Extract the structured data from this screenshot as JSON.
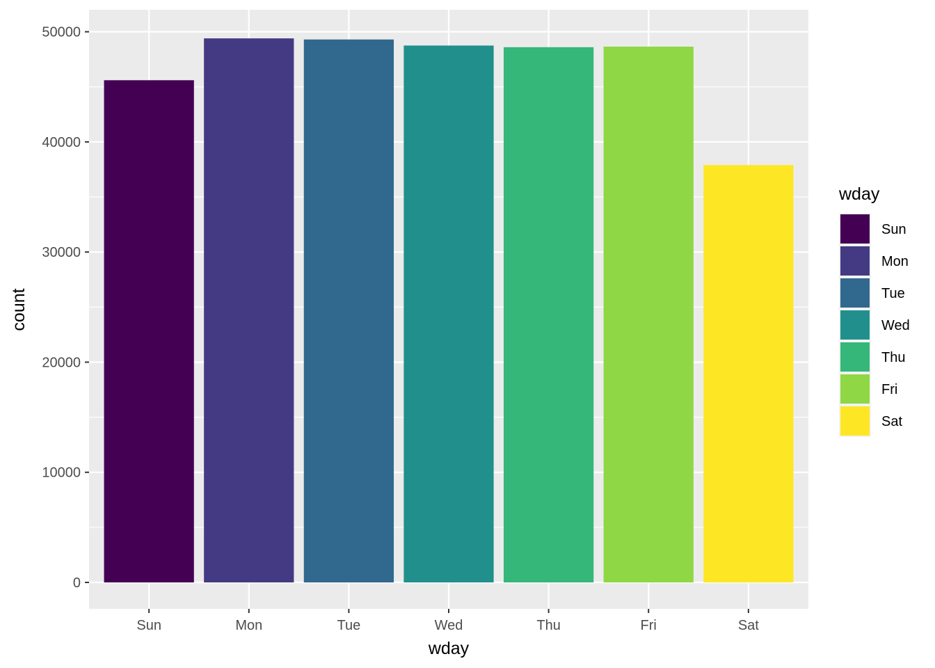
{
  "chart_data": {
    "type": "bar",
    "xlabel": "wday",
    "ylabel": "count",
    "categories": [
      "Sun",
      "Mon",
      "Tue",
      "Wed",
      "Thu",
      "Fri",
      "Sat"
    ],
    "values": [
      45600,
      49400,
      49300,
      48750,
      48600,
      48650,
      37900
    ],
    "colors": [
      "#440154",
      "#443A83",
      "#31688E",
      "#21908C",
      "#35B779",
      "#8FD744",
      "#FDE725"
    ],
    "ylim": [
      -2400,
      52000
    ],
    "yticks": [
      0,
      10000,
      20000,
      30000,
      40000,
      50000
    ],
    "ytick_labels": [
      "0",
      "10000",
      "20000",
      "30000",
      "40000",
      "50000"
    ],
    "grid": true,
    "legend": {
      "title": "wday",
      "position": "right",
      "entries": [
        "Sun",
        "Mon",
        "Tue",
        "Wed",
        "Thu",
        "Fri",
        "Sat"
      ]
    }
  }
}
